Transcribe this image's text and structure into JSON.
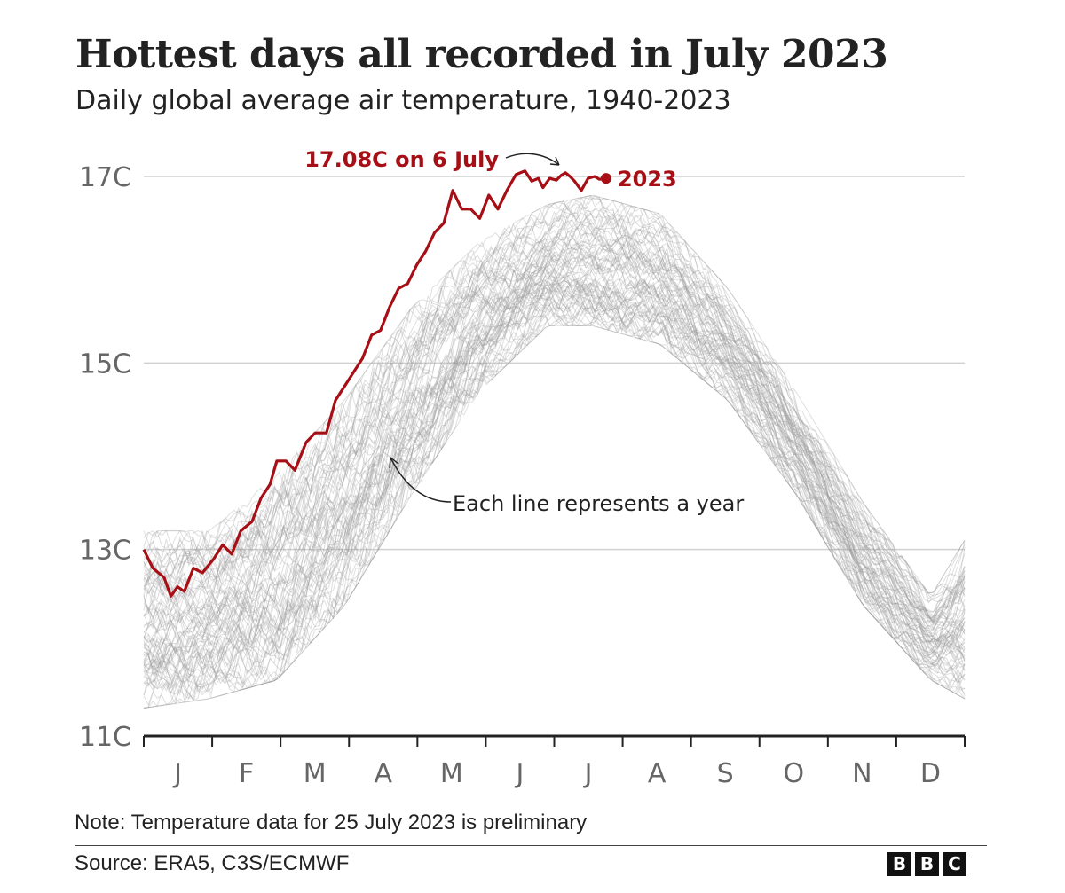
{
  "header": {
    "title": "Hottest days all recorded in July 2023",
    "subtitle": "Daily global average air temperature, 1940-2023"
  },
  "footer": {
    "note": "Note: Temperature data for 25 July 2023 is preliminary",
    "source": "Source: ERA5, C3S/ECMWF",
    "logo": [
      "B",
      "B",
      "C"
    ]
  },
  "colors": {
    "highlight": "#a50f15",
    "history": "#9a9a9a",
    "grid": "#d0d0d0",
    "axis": "#222222",
    "tick_text": "#666666"
  },
  "chart_data": {
    "type": "line",
    "x_axis": {
      "months": [
        "J",
        "F",
        "M",
        "A",
        "M",
        "J",
        "J",
        "A",
        "S",
        "O",
        "N",
        "D"
      ]
    },
    "y_axis": {
      "ticks": [
        "17C",
        "15C",
        "13C",
        "11C"
      ],
      "tick_values": [
        17,
        15,
        13,
        11
      ],
      "range": [
        11,
        17.2
      ],
      "unit": "C"
    },
    "annotations": {
      "peak_label": "17.08C on  6 July",
      "series_label": "2023",
      "history_note": "Each line represents a year"
    },
    "history": {
      "years": "1940-2022",
      "line_count": 83,
      "min_envelope": [
        [
          1,
          11.3
        ],
        [
          30,
          11.4
        ],
        [
          60,
          11.6
        ],
        [
          90,
          12.4
        ],
        [
          120,
          13.6
        ],
        [
          150,
          14.7
        ],
        [
          180,
          15.4
        ],
        [
          200,
          15.4
        ],
        [
          230,
          15.2
        ],
        [
          260,
          14.6
        ],
        [
          290,
          13.6
        ],
        [
          320,
          12.4
        ],
        [
          350,
          11.6
        ],
        [
          365,
          11.4
        ]
      ],
      "max_envelope": [
        [
          1,
          13.2
        ],
        [
          30,
          13.2
        ],
        [
          60,
          13.8
        ],
        [
          90,
          14.6
        ],
        [
          120,
          15.6
        ],
        [
          150,
          16.3
        ],
        [
          180,
          16.7
        ],
        [
          200,
          16.8
        ],
        [
          230,
          16.6
        ],
        [
          260,
          15.8
        ],
        [
          290,
          14.7
        ],
        [
          320,
          13.5
        ],
        [
          350,
          12.5
        ],
        [
          365,
          13.1
        ]
      ]
    },
    "series": [
      {
        "name": "2023",
        "points": [
          [
            1,
            13.0
          ],
          [
            5,
            12.8
          ],
          [
            10,
            12.7
          ],
          [
            13,
            12.5
          ],
          [
            16,
            12.6
          ],
          [
            19,
            12.55
          ],
          [
            23,
            12.8
          ],
          [
            27,
            12.75
          ],
          [
            32,
            12.9
          ],
          [
            36,
            13.05
          ],
          [
            40,
            12.95
          ],
          [
            44,
            13.2
          ],
          [
            49,
            13.3
          ],
          [
            53,
            13.55
          ],
          [
            57,
            13.7
          ],
          [
            60,
            13.95
          ],
          [
            64,
            13.95
          ],
          [
            68,
            13.85
          ],
          [
            73,
            14.15
          ],
          [
            77,
            14.25
          ],
          [
            82,
            14.25
          ],
          [
            86,
            14.6
          ],
          [
            90,
            14.75
          ],
          [
            94,
            14.9
          ],
          [
            98,
            15.05
          ],
          [
            102,
            15.3
          ],
          [
            106,
            15.35
          ],
          [
            110,
            15.6
          ],
          [
            114,
            15.8
          ],
          [
            118,
            15.85
          ],
          [
            122,
            16.05
          ],
          [
            126,
            16.2
          ],
          [
            130,
            16.4
          ],
          [
            134,
            16.5
          ],
          [
            138,
            16.85
          ],
          [
            142,
            16.65
          ],
          [
            146,
            16.65
          ],
          [
            150,
            16.55
          ],
          [
            154,
            16.8
          ],
          [
            158,
            16.65
          ],
          [
            162,
            16.85
          ],
          [
            166,
            17.02
          ],
          [
            170,
            17.06
          ],
          [
            173,
            16.95
          ],
          [
            176,
            16.98
          ],
          [
            178,
            16.88
          ],
          [
            181,
            16.98
          ],
          [
            184,
            16.96
          ],
          [
            186,
            17.01
          ],
          [
            188,
            17.04
          ],
          [
            190,
            17.0
          ],
          [
            192,
            16.95
          ],
          [
            195,
            16.85
          ],
          [
            198,
            16.98
          ],
          [
            201,
            17.0
          ],
          [
            203,
            16.97
          ],
          [
            206,
            16.98
          ]
        ]
      }
    ],
    "highlight_point": {
      "date": "6 July 2023",
      "value": 17.08
    }
  }
}
